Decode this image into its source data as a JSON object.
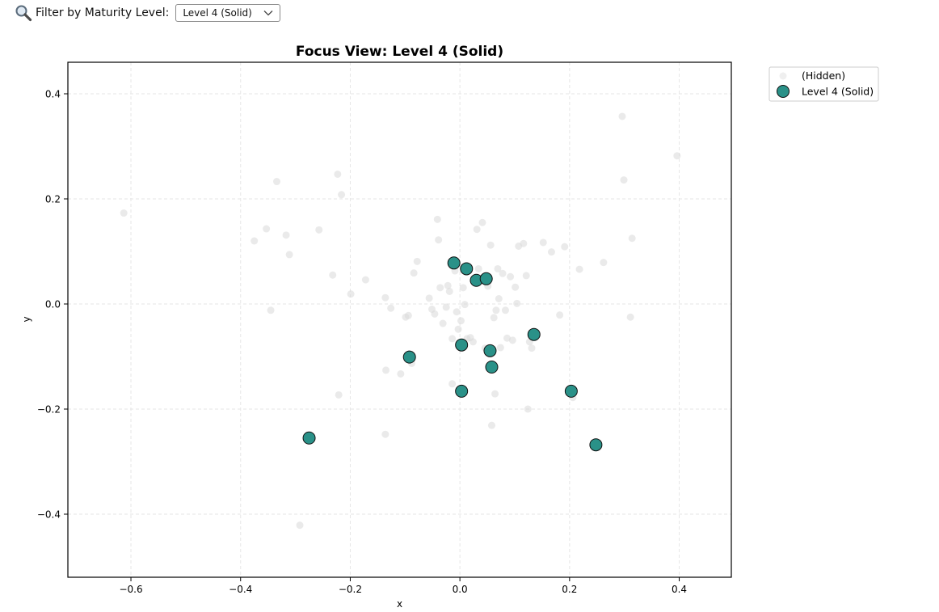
{
  "filter": {
    "icon": "magnifier-icon",
    "label": "Filter by Maturity Level:",
    "selected": "Level 4 (Solid)"
  },
  "chart_data": {
    "type": "scatter",
    "title": "Focus View: Level 4 (Solid)",
    "xlabel": "x",
    "ylabel": "y",
    "xlim": [
      -0.715,
      0.495
    ],
    "ylim": [
      -0.52,
      0.46
    ],
    "xticks": [
      -0.6,
      -0.4,
      -0.2,
      0.0,
      0.2,
      0.4
    ],
    "xtick_labels": [
      "−0.6",
      "−0.4",
      "−0.2",
      "0.0",
      "0.2",
      "0.4"
    ],
    "yticks": [
      -0.4,
      -0.2,
      0.0,
      0.2,
      0.4
    ],
    "ytick_labels": [
      "−0.4",
      "−0.2",
      "0.0",
      "0.2",
      "0.4"
    ],
    "grid": true,
    "legend_position": "outside top-right",
    "legend": [
      "(Hidden)",
      "Level 4 (Solid)"
    ],
    "series": [
      {
        "name": "(Hidden)",
        "color": "#d9d9d9",
        "points": [
          [
            -0.613,
            0.173
          ],
          [
            -0.375,
            0.12
          ],
          [
            -0.353,
            0.143
          ],
          [
            -0.334,
            0.233
          ],
          [
            -0.317,
            0.131
          ],
          [
            -0.311,
            0.094
          ],
          [
            -0.345,
            -0.012
          ],
          [
            -0.257,
            0.141
          ],
          [
            -0.232,
            0.055
          ],
          [
            -0.223,
            0.247
          ],
          [
            -0.216,
            0.208
          ],
          [
            -0.199,
            0.019
          ],
          [
            -0.172,
            0.046
          ],
          [
            -0.136,
            0.012
          ],
          [
            -0.126,
            -0.008
          ],
          [
            -0.108,
            -0.133
          ],
          [
            -0.099,
            -0.025
          ],
          [
            -0.094,
            -0.022
          ],
          [
            -0.088,
            -0.113
          ],
          [
            -0.084,
            0.059
          ],
          [
            -0.078,
            0.081
          ],
          [
            -0.056,
            0.011
          ],
          [
            -0.051,
            -0.01
          ],
          [
            -0.046,
            -0.019
          ],
          [
            -0.041,
            0.161
          ],
          [
            -0.039,
            0.122
          ],
          [
            -0.036,
            0.031
          ],
          [
            -0.031,
            -0.037
          ],
          [
            -0.025,
            -0.006
          ],
          [
            -0.022,
            0.035
          ],
          [
            -0.019,
            0.024
          ],
          [
            -0.014,
            -0.066
          ],
          [
            -0.009,
            0.063
          ],
          [
            -0.006,
            -0.015
          ],
          [
            -0.003,
            -0.048
          ],
          [
            0.002,
            -0.032
          ],
          [
            0.006,
            0.031
          ],
          [
            0.009,
            -0.001
          ],
          [
            0.013,
            -0.066
          ],
          [
            0.019,
            -0.064
          ],
          [
            0.024,
            -0.072
          ],
          [
            0.031,
            0.142
          ],
          [
            0.034,
            0.067
          ],
          [
            0.041,
            0.155
          ],
          [
            0.046,
            -0.084
          ],
          [
            0.051,
            0.034
          ],
          [
            0.056,
            0.112
          ],
          [
            0.062,
            -0.026
          ],
          [
            0.066,
            -0.012
          ],
          [
            0.069,
            0.067
          ],
          [
            0.071,
            0.01
          ],
          [
            0.074,
            -0.083
          ],
          [
            0.078,
            0.058
          ],
          [
            0.083,
            -0.012
          ],
          [
            0.086,
            -0.065
          ],
          [
            0.092,
            0.052
          ],
          [
            0.096,
            -0.069
          ],
          [
            0.101,
            0.032
          ],
          [
            0.104,
            0.001
          ],
          [
            0.107,
            0.11
          ],
          [
            0.116,
            0.115
          ],
          [
            0.121,
            0.054
          ],
          [
            0.124,
            -0.2
          ],
          [
            0.127,
            -0.072
          ],
          [
            0.131,
            -0.084
          ],
          [
            0.152,
            0.117
          ],
          [
            0.167,
            0.099
          ],
          [
            0.182,
            -0.021
          ],
          [
            0.191,
            0.109
          ],
          [
            0.218,
            0.066
          ],
          [
            0.206,
            -0.178
          ],
          [
            0.262,
            0.079
          ],
          [
            0.296,
            0.357
          ],
          [
            0.299,
            0.236
          ],
          [
            0.311,
            -0.025
          ],
          [
            0.314,
            0.125
          ],
          [
            0.396,
            0.282
          ],
          [
            -0.292,
            -0.421
          ],
          [
            -0.136,
            -0.248
          ],
          [
            -0.135,
            -0.126
          ],
          [
            -0.221,
            -0.173
          ],
          [
            0.058,
            -0.231
          ],
          [
            0.064,
            -0.171
          ],
          [
            -0.014,
            -0.152
          ]
        ]
      },
      {
        "name": "Level 4 (Solid)",
        "color": "#2a9188",
        "points": [
          [
            -0.011,
            0.078
          ],
          [
            0.012,
            0.067
          ],
          [
            0.03,
            0.045
          ],
          [
            0.048,
            0.048
          ],
          [
            0.135,
            -0.058
          ],
          [
            0.003,
            -0.078
          ],
          [
            0.055,
            -0.089
          ],
          [
            -0.092,
            -0.101
          ],
          [
            0.058,
            -0.12
          ],
          [
            0.003,
            -0.166
          ],
          [
            0.203,
            -0.166
          ],
          [
            -0.275,
            -0.255
          ],
          [
            0.248,
            -0.268
          ]
        ]
      }
    ]
  }
}
